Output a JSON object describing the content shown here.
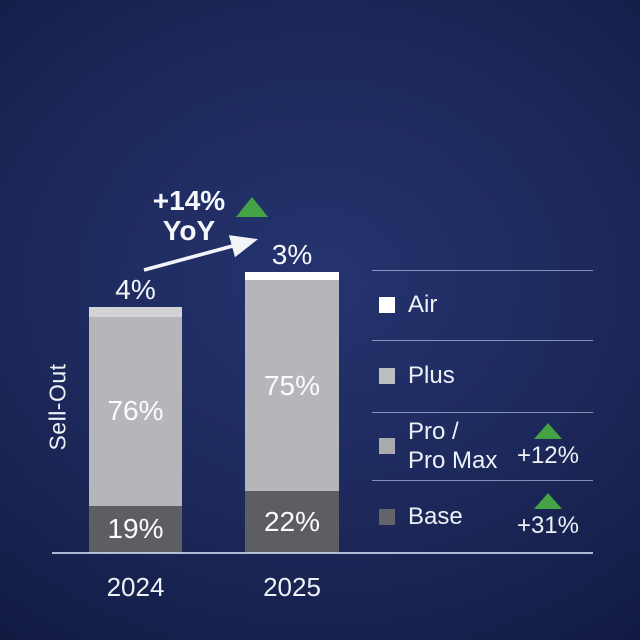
{
  "chart_data": {
    "type": "bar",
    "stacked": true,
    "ylabel": "Sell-Out",
    "unit": "%",
    "categories": [
      "2024",
      "2025"
    ],
    "series": [
      {
        "name": "Air",
        "color": "#ffffff",
        "values": [
          null,
          3
        ]
      },
      {
        "name": "Plus",
        "color": "#d2d3d6",
        "values": [
          4,
          null
        ]
      },
      {
        "name": "Pro / Pro Max",
        "color": "#b5b6b9",
        "values": [
          76,
          75
        ]
      },
      {
        "name": "Base",
        "color": "#5c5e62",
        "values": [
          19,
          22
        ]
      }
    ],
    "annotations": {
      "total_yoy_line1": "+14%",
      "total_yoy_line2": "YoY",
      "series_growth": [
        {
          "series": "Pro / Pro Max",
          "value": "+12%"
        },
        {
          "series": "Base",
          "value": "+31%"
        }
      ]
    },
    "legend_position": "right",
    "grid": false
  },
  "legend": {
    "items": [
      {
        "label": "Air",
        "color": "#ffffff"
      },
      {
        "label": "Plus",
        "color": "#bcbec2"
      },
      {
        "label_line1": "Pro /",
        "label_line2": "Pro Max",
        "color": "#a8aaae",
        "growth": "+12%"
      },
      {
        "label": "Base",
        "color": "#636569",
        "growth": "+31%"
      }
    ]
  },
  "colors": {
    "growth_green": "#44a345",
    "axis_line": "#d5dff5",
    "background_center": "#253470",
    "background_edge": "#0a0f2b",
    "text": "#f4f5f8"
  }
}
